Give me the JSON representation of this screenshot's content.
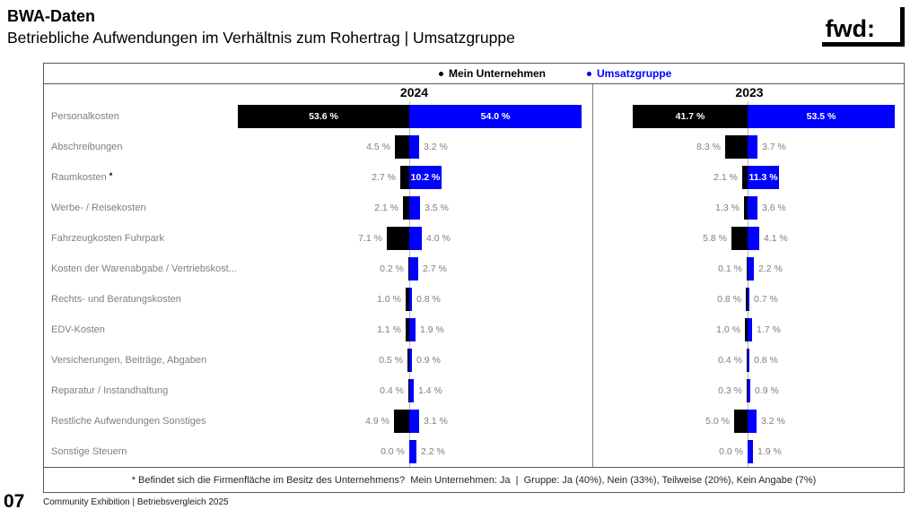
{
  "slide": {
    "title": "BWA-Daten",
    "subtitle": "Betriebliche Aufwendungen im Verhältnis zum Rohertrag | Umsatzgruppe",
    "logo_text": "fwd:",
    "page_number": "07",
    "footer_caption": "Community Exhibition | Betriebsvergleich 2025"
  },
  "legend": {
    "items": [
      {
        "label": "Mein Unternehmen",
        "color": "#000000"
      },
      {
        "label": "Umsatzgruppe",
        "color": "#0000ff"
      }
    ]
  },
  "footnote": "* Befindet sich die Firmenfläche im Besitz des Unternehmens?  Mein Unternehmen: Ja  |  Gruppe: Ja (40%), Nein (33%), Teilweise (20%), Kein Angabe (7%)",
  "chart_data": {
    "type": "bar",
    "variant": "horizontal diverging (tornado), two panels",
    "unit": "%",
    "legend_position": "top",
    "series_colors": {
      "Mein Unternehmen": "#000000",
      "Umsatzgruppe": "#0000ff"
    },
    "categories": [
      "Personalkosten",
      "Abschreibungen",
      "Raumkosten *",
      "Werbe- / Reisekosten",
      "Fahrzeugkosten Fuhrpark",
      "Kosten der Warenabgabe / Vertriebskost...",
      "Rechts- und Beratungskosten",
      "EDV-Kosten",
      "Versicherungen, Beiträge, Abgaben",
      "Reparatur / Instandhaltung",
      "Restliche Aufwendungen Sonstiges",
      "Sonstige Steuern"
    ],
    "panels": [
      {
        "year": "2024",
        "series": [
          {
            "name": "Mein Unternehmen",
            "side": "left",
            "values": [
              53.6,
              4.5,
              2.7,
              2.1,
              7.1,
              0.2,
              1.0,
              1.1,
              0.5,
              0.4,
              4.9,
              0.0
            ]
          },
          {
            "name": "Umsatzgruppe",
            "side": "right",
            "values": [
              54.0,
              3.2,
              10.2,
              3.5,
              4.0,
              2.7,
              0.8,
              1.9,
              0.9,
              1.4,
              3.1,
              2.2
            ]
          }
        ]
      },
      {
        "year": "2023",
        "series": [
          {
            "name": "Mein Unternehmen",
            "side": "left",
            "values": [
              41.7,
              8.3,
              2.1,
              1.3,
              5.8,
              0.1,
              0.8,
              1.0,
              0.4,
              0.3,
              5.0,
              0.0
            ]
          },
          {
            "name": "Umsatzgruppe",
            "side": "right",
            "values": [
              53.5,
              3.7,
              11.3,
              3.6,
              4.1,
              2.2,
              0.7,
              1.7,
              0.8,
              0.9,
              3.2,
              1.9
            ]
          }
        ]
      }
    ]
  }
}
